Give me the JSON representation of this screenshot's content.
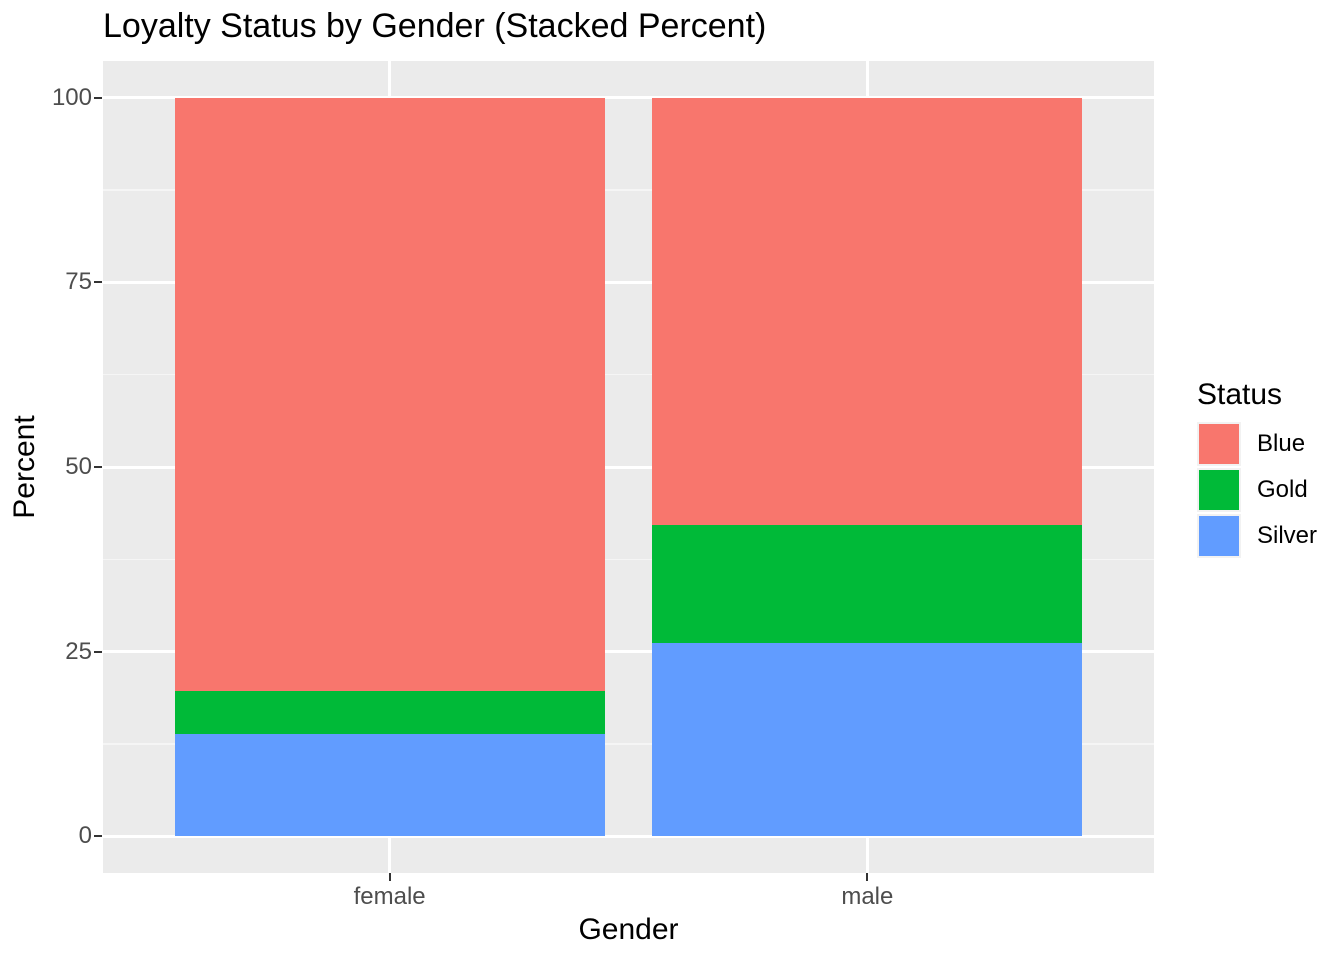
{
  "title": "Loyalty Status by Gender (Stacked Percent)",
  "chart_data": {
    "type": "bar",
    "stacked": true,
    "percent": true,
    "title": "Loyalty Status by Gender (Stacked Percent)",
    "xlabel": "Gender",
    "ylabel": "Percent",
    "categories": [
      "female",
      "male"
    ],
    "series": [
      {
        "name": "Blue",
        "color": "#F8766D",
        "values": [
          80.3,
          57.8
        ]
      },
      {
        "name": "Gold",
        "color": "#00BA38",
        "values": [
          5.9,
          16.1
        ]
      },
      {
        "name": "Silver",
        "color": "#619CFF",
        "values": [
          13.8,
          26.1
        ]
      }
    ],
    "stack_order_bottom_to_top": [
      "Silver",
      "Gold",
      "Blue"
    ],
    "ylim": [
      0,
      100
    ],
    "y_ticks": [
      0,
      25,
      50,
      75,
      100
    ],
    "y_minor_ticks": [
      12.5,
      37.5,
      62.5,
      87.5
    ],
    "grid": true,
    "legend_position": "right"
  },
  "legend": {
    "title": "Status",
    "entries": [
      {
        "label": "Blue",
        "color": "#F8766D"
      },
      {
        "label": "Gold",
        "color": "#00BA38"
      },
      {
        "label": "Silver",
        "color": "#619CFF"
      }
    ]
  },
  "style": {
    "panel_bg": "#EBEBEB",
    "grid_major_color": "#FFFFFF",
    "grid_minor_color": "#F5F5F5",
    "axis_text_color": "#4D4D4D",
    "tick_mark_color": "#333333",
    "legend_key_bg": "#F2F2F2"
  }
}
